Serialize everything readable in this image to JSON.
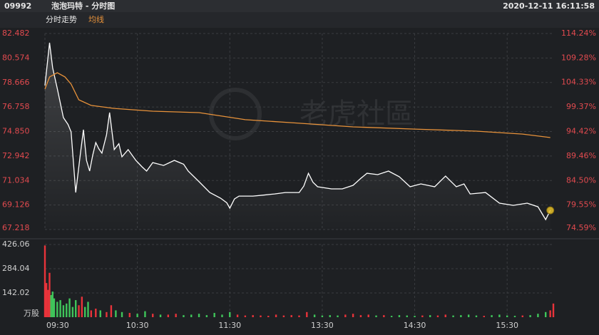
{
  "header": {
    "code": "09992",
    "name": "泡泡玛特 - 分时图",
    "datetime": "2020-12-11 16:11:58"
  },
  "tabs": [
    "分时走势",
    "均线"
  ],
  "watermark": "老虎社區",
  "chart_data": [
    {
      "type": "line",
      "xlim": [
        0,
        330
      ],
      "xticks": [
        {
          "value": 0,
          "label": "09:30"
        },
        {
          "value": 60,
          "label": "10:30"
        },
        {
          "value": 120,
          "label": "11:30"
        },
        {
          "value": 180,
          "label": "13:30"
        },
        {
          "value": 240,
          "label": "14:30"
        },
        {
          "value": 300,
          "label": "15:30"
        }
      ],
      "ylim": [
        67.218,
        82.482
      ],
      "yticks": [
        {
          "value": 82.482,
          "label": "82.482"
        },
        {
          "value": 80.574,
          "label": "80.574"
        },
        {
          "value": 78.666,
          "label": "78.666"
        },
        {
          "value": 76.758,
          "label": "76.758"
        },
        {
          "value": 74.85,
          "label": "74.850"
        },
        {
          "value": 72.942,
          "label": "72.942"
        },
        {
          "value": 71.034,
          "label": "71.034"
        },
        {
          "value": 69.126,
          "label": "69.126"
        },
        {
          "value": 67.218,
          "label": "67.218"
        }
      ],
      "y2lim": [
        74.59,
        114.24
      ],
      "y2ticks": [
        {
          "value": 114.24,
          "label": "114.24%"
        },
        {
          "value": 109.28,
          "label": "109.28%"
        },
        {
          "value": 104.33,
          "label": "104.33%"
        },
        {
          "value": 99.37,
          "label": "99.37%"
        },
        {
          "value": 94.42,
          "label": "94.42%"
        },
        {
          "value": 89.46,
          "label": "89.46%"
        },
        {
          "value": 84.5,
          "label": "84.50%"
        },
        {
          "value": 79.55,
          "label": "79.55%"
        },
        {
          "value": 74.59,
          "label": "74.59%"
        }
      ],
      "grid": true,
      "series": [
        {
          "color": "#ffffff",
          "x": [
            0,
            3,
            5,
            8,
            12,
            15,
            17,
            20,
            23,
            25,
            27,
            29,
            31,
            33,
            35,
            37,
            40,
            42,
            45,
            48,
            50,
            54,
            59,
            63,
            66,
            70,
            77,
            84,
            90,
            93,
            100,
            107,
            114,
            118,
            120,
            123,
            126,
            135,
            142,
            149,
            156,
            165,
            168,
            171,
            174,
            177,
            186,
            193,
            200,
            205,
            209,
            216,
            223,
            230,
            237,
            244,
            253,
            260,
            267,
            272,
            276,
            286,
            295,
            304,
            313,
            320,
            325,
            328
          ],
          "values": [
            78.43,
            81.76,
            79.82,
            78.2,
            75.93,
            75.4,
            74.82,
            70.1,
            73.1,
            74.99,
            72.6,
            71.77,
            73.0,
            73.99,
            73.5,
            73.16,
            74.6,
            76.32,
            73.44,
            73.9,
            72.88,
            73.44,
            72.6,
            72.1,
            71.77,
            72.43,
            72.21,
            72.6,
            72.3,
            71.77,
            70.94,
            70.1,
            69.66,
            69.3,
            68.88,
            69.6,
            69.82,
            69.82,
            69.9,
            69.99,
            70.1,
            70.1,
            70.6,
            71.6,
            70.9,
            70.55,
            70.38,
            70.38,
            70.66,
            71.2,
            71.6,
            71.49,
            71.77,
            71.33,
            70.55,
            70.77,
            70.55,
            71.38,
            70.55,
            70.77,
            69.99,
            70.1,
            69.27,
            69.1,
            69.27,
            68.99,
            67.99,
            68.71
          ]
        },
        {
          "name": "均线",
          "color": "#e8923a",
          "x": [
            0,
            3,
            8,
            13,
            17,
            22,
            30,
            45,
            70,
            100,
            130,
            160,
            200,
            240,
            280,
            310,
            328
          ],
          "values": [
            78.15,
            79.1,
            79.43,
            79.1,
            78.54,
            77.32,
            76.88,
            76.65,
            76.43,
            76.32,
            75.77,
            75.54,
            75.21,
            75.04,
            74.88,
            74.65,
            74.38
          ]
        }
      ]
    },
    {
      "type": "bar",
      "y_unit": "万股",
      "xlim": [
        0,
        330
      ],
      "ylim": [
        0,
        426.06
      ],
      "yticks": [
        142.02,
        284.04,
        426.06
      ],
      "up_color": "#e8333a",
      "down_color": "#3fc55a",
      "x": [
        0,
        1,
        2,
        3,
        4,
        5,
        6,
        8,
        10,
        12,
        14,
        16,
        18,
        20,
        22,
        24,
        26,
        28,
        30,
        33,
        36,
        40,
        43,
        46,
        50,
        55,
        60,
        65,
        70,
        75,
        80,
        85,
        90,
        95,
        100,
        105,
        110,
        115,
        120,
        125,
        130,
        135,
        140,
        145,
        150,
        155,
        160,
        165,
        170,
        175,
        180,
        185,
        190,
        195,
        200,
        205,
        210,
        215,
        220,
        225,
        230,
        235,
        240,
        245,
        250,
        255,
        260,
        265,
        270,
        275,
        280,
        285,
        290,
        295,
        300,
        305,
        310,
        315,
        320,
        325,
        328,
        330
      ],
      "values": [
        420,
        200,
        160,
        260,
        130,
        150,
        110,
        90,
        100,
        70,
        80,
        110,
        60,
        100,
        70,
        120,
        60,
        90,
        40,
        50,
        40,
        30,
        70,
        40,
        30,
        25,
        20,
        35,
        20,
        15,
        15,
        20,
        12,
        15,
        20,
        12,
        25,
        15,
        30,
        15,
        10,
        12,
        10,
        8,
        15,
        10,
        12,
        10,
        30,
        15,
        10,
        12,
        10,
        15,
        20,
        12,
        15,
        10,
        12,
        8,
        12,
        10,
        8,
        10,
        12,
        10,
        15,
        10,
        12,
        15,
        10,
        8,
        12,
        15,
        10,
        8,
        10,
        12,
        20,
        30,
        40,
        80
      ]
    }
  ]
}
